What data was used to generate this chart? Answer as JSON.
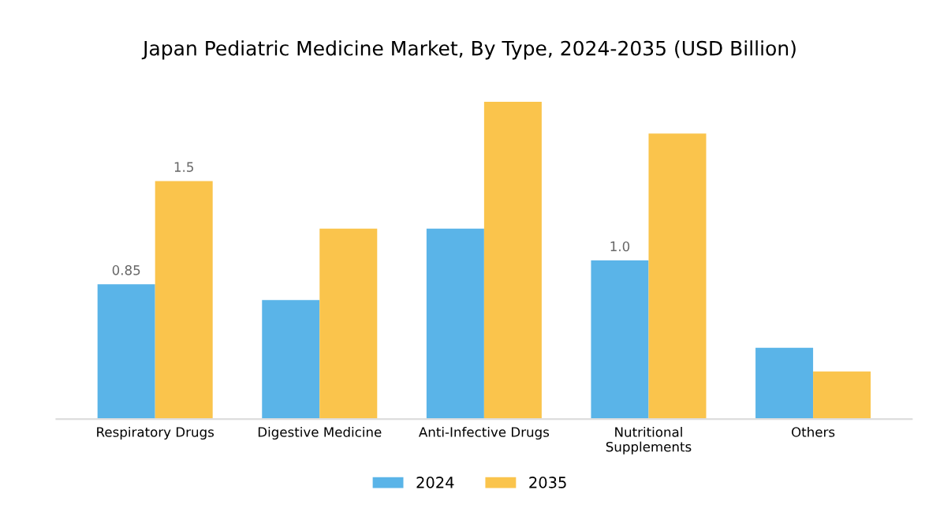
{
  "chart_data": {
    "type": "bar",
    "title": "Japan Pediatric Medicine Market, By Type, 2024-2035 (USD Billion)",
    "categories": [
      "Respiratory Drugs",
      "Digestive Medicine",
      "Anti-Infective Drugs",
      "Nutritional\nSupplements",
      "Others"
    ],
    "series": [
      {
        "name": "2024",
        "color": "#5ab4e8",
        "values": [
          0.85,
          0.75,
          1.2,
          1.0,
          0.45
        ],
        "value_labels": [
          "0.85",
          null,
          null,
          "1.0",
          null
        ]
      },
      {
        "name": "2035",
        "color": "#fac44c",
        "values": [
          1.5,
          1.2,
          2.0,
          1.8,
          0.3
        ],
        "value_labels": [
          "1.5",
          null,
          null,
          null,
          null
        ]
      }
    ],
    "legend": "bottom"
  }
}
